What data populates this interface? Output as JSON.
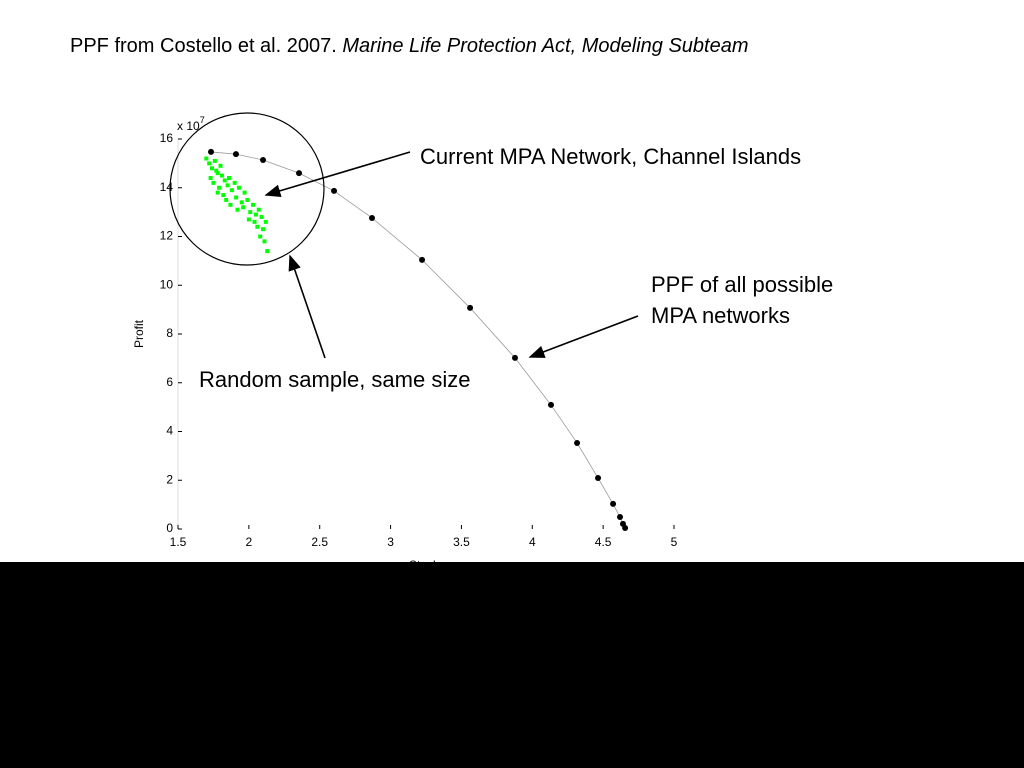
{
  "chart_data": {
    "type": "line",
    "title": "PPF from Costello et al. 2007.",
    "title_italic": "Marine Life Protection Act, Modeling Subteam",
    "x_label": "Stock",
    "y_label": "Profit",
    "y_multiplier": {
      "base": "x 10",
      "exponent": "7"
    },
    "xlim": [
      1.5,
      5
    ],
    "xticks": [
      1.5,
      2,
      2.5,
      3,
      3.5,
      4,
      4.5,
      5
    ],
    "ylim": [
      0,
      16
    ],
    "yticks": [
      0,
      2,
      4,
      6,
      8,
      10,
      12,
      14,
      16
    ],
    "series": [
      {
        "color": "#000000",
        "x": [
          1.733,
          1.909,
          2.1,
          2.354,
          2.601,
          2.869,
          3.222,
          3.561,
          3.878,
          4.132,
          4.316,
          4.464,
          4.57,
          4.619,
          4.64,
          4.655
        ],
        "values": [
          15.47,
          15.38,
          15.14,
          14.6,
          13.87,
          12.76,
          11.04,
          9.07,
          7.02,
          5.09,
          3.53,
          2.09,
          1.03,
          0.49,
          0.21,
          0.04
        ]
      }
    ],
    "sample": {
      "color": "#00ff00",
      "x": [
        1.7,
        1.72,
        1.74,
        1.76,
        1.78,
        1.8,
        1.73,
        1.75,
        1.77,
        1.79,
        1.81,
        1.83,
        1.85,
        1.78,
        1.82,
        1.86,
        1.88,
        1.9,
        1.84,
        1.87,
        1.91,
        1.93,
        1.95,
        1.97,
        1.92,
        1.96,
        1.99,
        2.01,
        2.03,
        2.05,
        2.0,
        2.04,
        2.07,
        2.09,
        2.06,
        2.1,
        2.12,
        2.08,
        2.11,
        2.13
      ],
      "values": [
        15.2,
        15.0,
        14.8,
        15.1,
        14.6,
        14.9,
        14.4,
        14.2,
        14.7,
        14.0,
        14.5,
        14.3,
        14.1,
        13.8,
        13.7,
        14.4,
        13.9,
        14.2,
        13.5,
        13.3,
        13.6,
        14.0,
        13.4,
        13.8,
        13.1,
        13.2,
        13.5,
        13.0,
        13.3,
        12.9,
        12.7,
        12.6,
        13.1,
        12.8,
        12.4,
        12.3,
        12.6,
        12.0,
        11.8,
        11.4
      ]
    },
    "annotations": [
      "Current MPA Network, Channel Islands",
      "PPF of all possible",
      "MPA networks",
      "Random sample, same size"
    ]
  }
}
